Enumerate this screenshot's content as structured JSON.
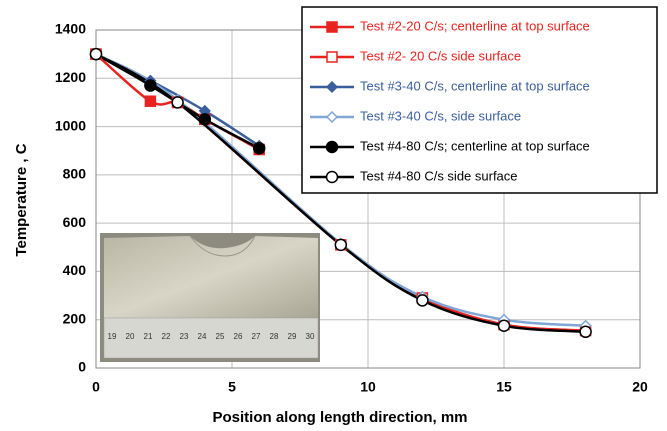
{
  "chart_data": {
    "type": "line",
    "x_label": "Position along length direction, mm",
    "y_label": "Temperature , C",
    "xlim": [
      0,
      20
    ],
    "xticks": [
      0,
      5,
      10,
      15,
      20
    ],
    "ylim": [
      0,
      1400
    ],
    "yticks": [
      0,
      200,
      400,
      600,
      800,
      1000,
      1200,
      1400
    ],
    "grid": true,
    "legend": "top-right",
    "series": [
      {
        "name": "Test #2-20 C/s; centerline at top surface",
        "color": "#e8231f",
        "marker": "square",
        "filled": true,
        "x": [
          0,
          2,
          3,
          4,
          6
        ],
        "values": [
          1300,
          1105,
          1100,
          1030,
          905
        ]
      },
      {
        "name": "Test #2- 20 C/s side surface",
        "color": "#e8231f",
        "marker": "square",
        "filled": false,
        "x": [
          0,
          3,
          9,
          12,
          15,
          18
        ],
        "values": [
          1300,
          1100,
          510,
          290,
          180,
          155
        ]
      },
      {
        "name": "Test #3-40 C/s, centerline at top surface",
        "color": "#3a5f9e",
        "marker": "diamond",
        "filled": true,
        "x": [
          0,
          2,
          4,
          6
        ],
        "values": [
          1300,
          1190,
          1065,
          920
        ]
      },
      {
        "name": "Test #3-40 C/s, side surface",
        "color": "#7fa6d6",
        "marker": "diamond",
        "filled": false,
        "x": [
          0,
          3,
          9,
          12,
          15,
          18
        ],
        "values": [
          1300,
          1110,
          515,
          295,
          200,
          175
        ]
      },
      {
        "name": "Test #4-80 C/s; centerline at top surface",
        "color": "#000000",
        "marker": "circle",
        "filled": true,
        "x": [
          0,
          2,
          4,
          6
        ],
        "values": [
          1300,
          1170,
          1030,
          910
        ]
      },
      {
        "name": "Test #4-80 C/s side surface",
        "color": "#000000",
        "marker": "circle",
        "filled": false,
        "x": [
          0,
          3,
          9,
          12,
          15,
          18
        ],
        "values": [
          1300,
          1100,
          510,
          280,
          175,
          150
        ]
      }
    ]
  },
  "inset": {
    "ruler_labels": [
      "19",
      "20",
      "21",
      "22",
      "23",
      "24",
      "25",
      "26",
      "27",
      "28",
      "29",
      "30"
    ]
  }
}
